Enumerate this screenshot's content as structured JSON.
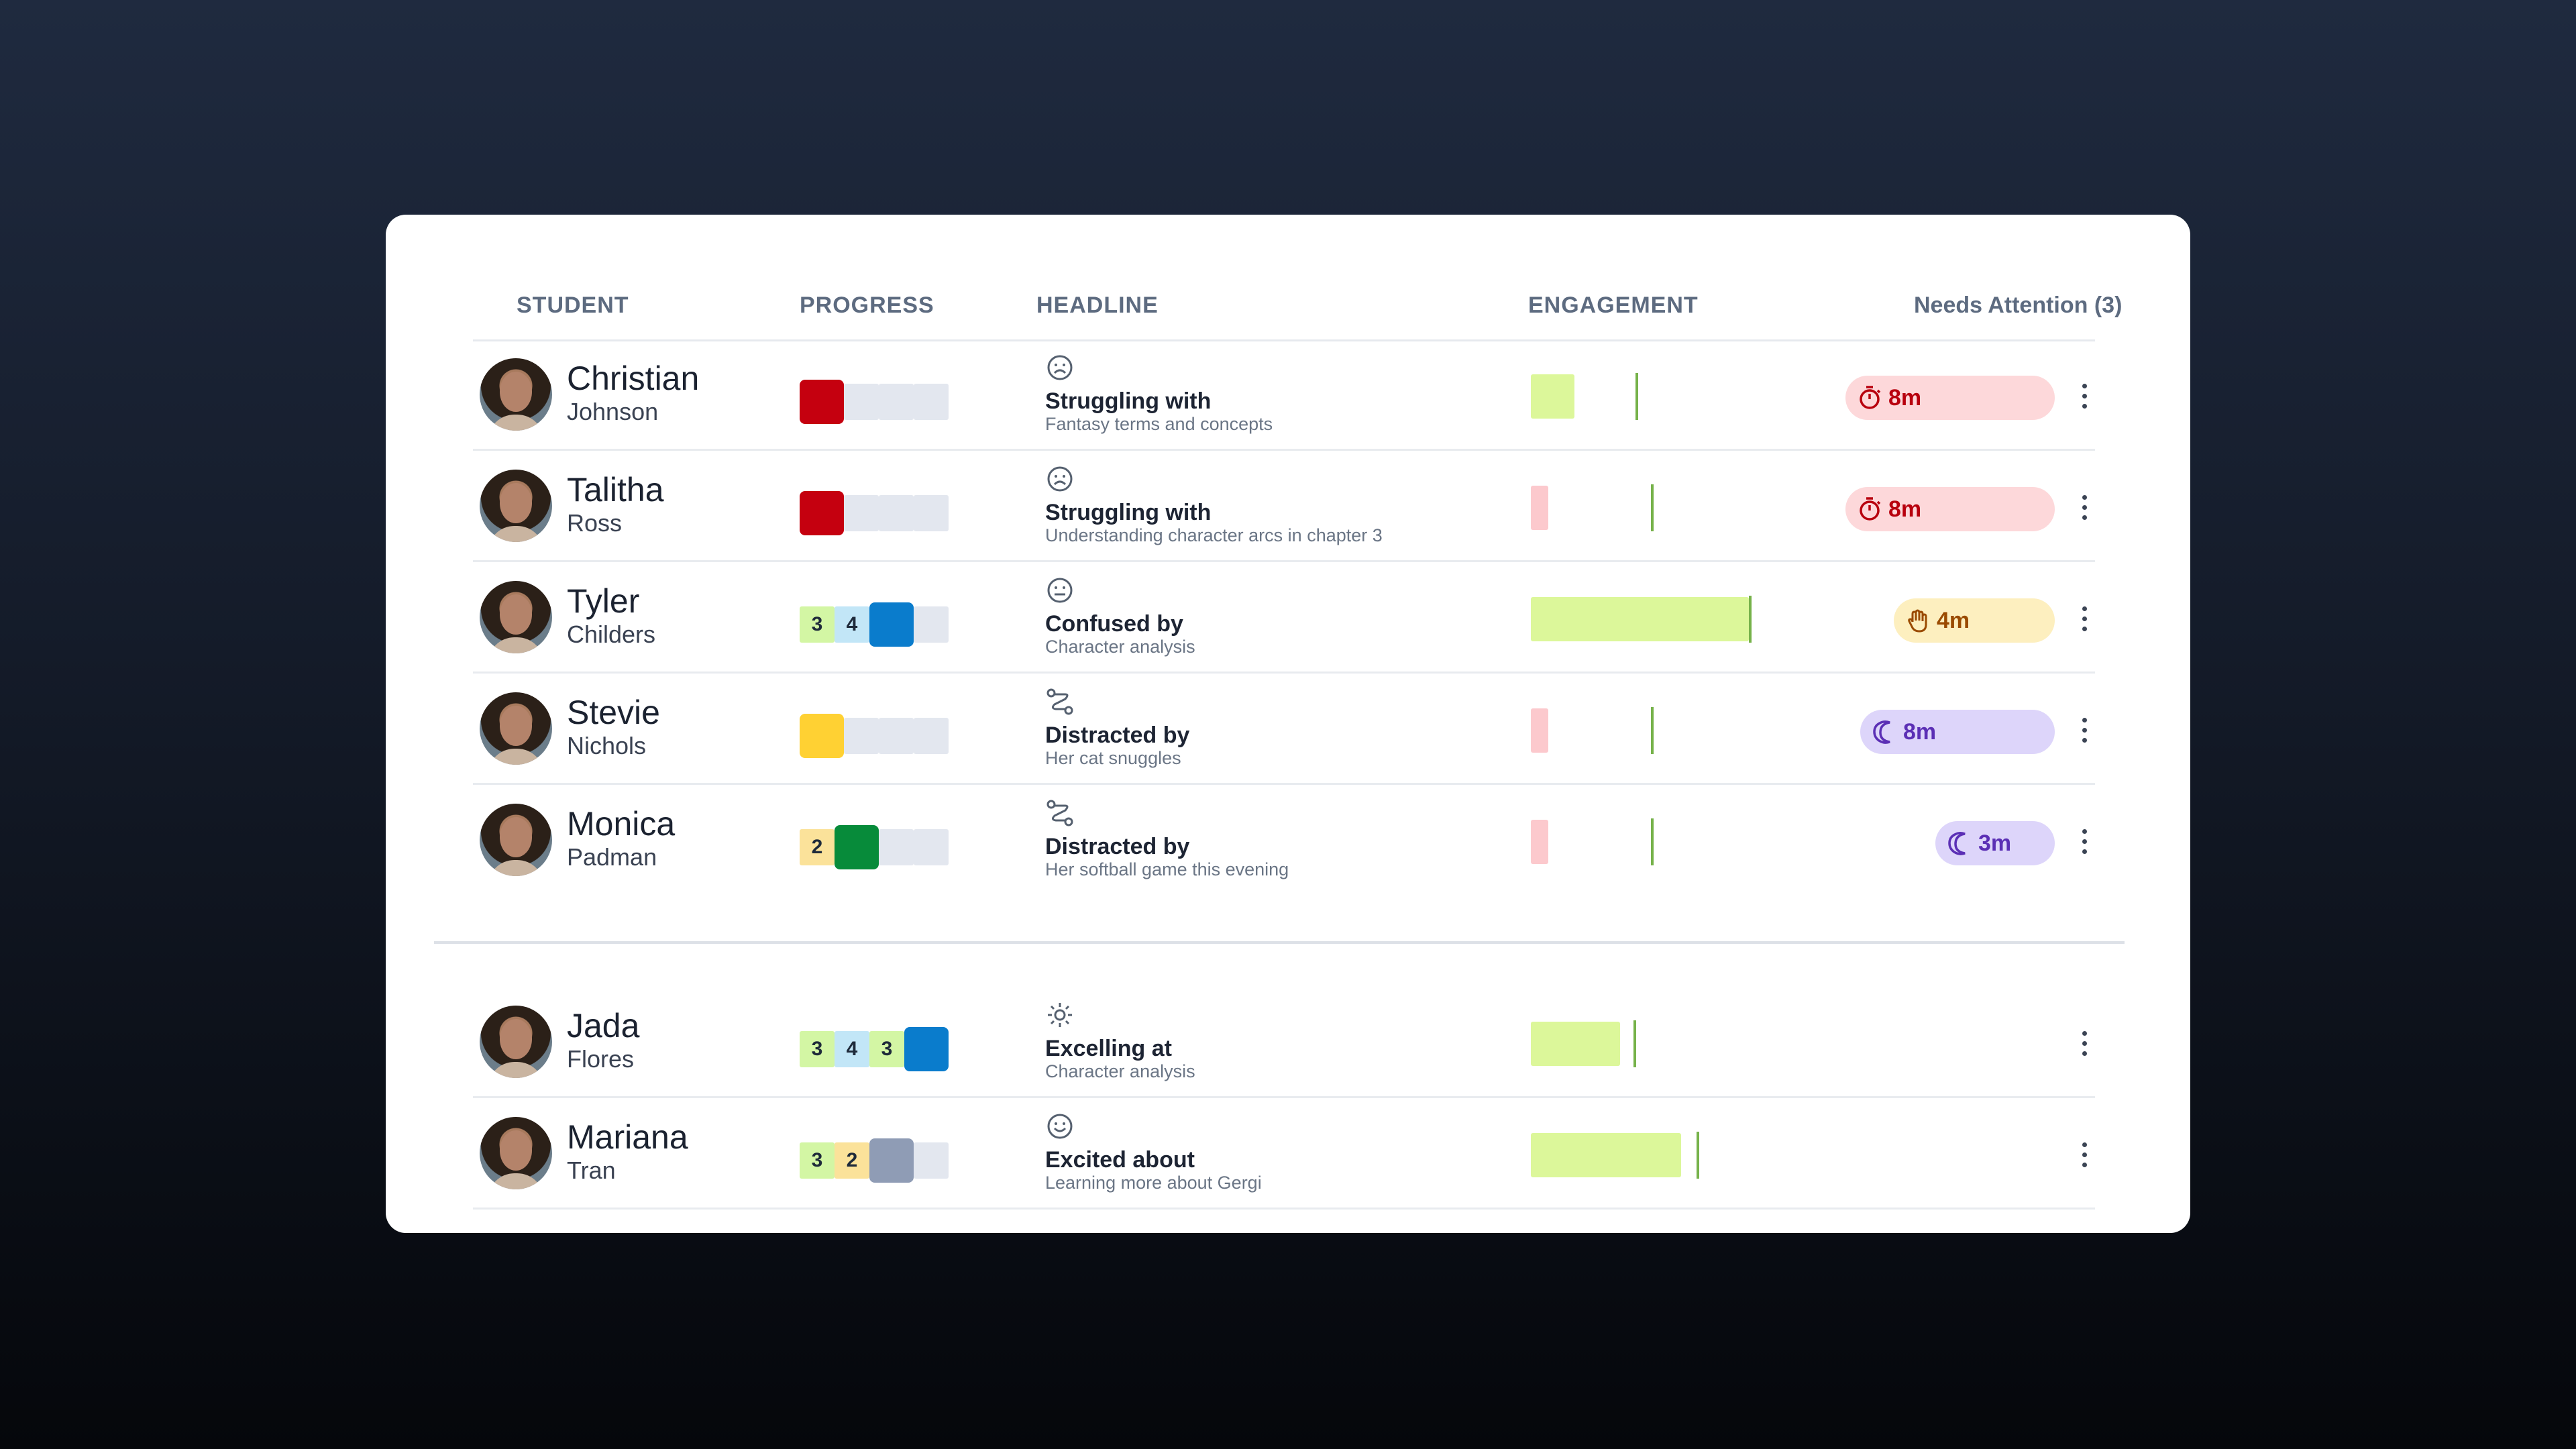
{
  "columns": {
    "student": "STUDENT",
    "progress": "PROGRESS",
    "headline": "HEADLINE",
    "engagement": "ENGAGEMENT",
    "needs_attention": "Needs Attention (3)"
  },
  "colors": {
    "red": "#c5000f",
    "yellow": "#ffd133",
    "green": "#078b3a",
    "blue": "#0a7ccc",
    "gray_block": "#8f9cb5",
    "empty": "#e3e7ef",
    "lime": "#dcf79a",
    "pink": "#fcc9cd",
    "mint": "#d3f6a4",
    "sky": "#c2e6f7",
    "sand": "#fbe29a"
  },
  "students": [
    {
      "first": "Christian",
      "last": "Johnson",
      "progress_label_cells": [],
      "progress_active": "red",
      "icon": "frown-face-icon",
      "headline_title": "Struggling with",
      "headline_sub": "Fantasy terms and concepts",
      "engagement_level": 0.2,
      "engagement_color": "lime",
      "engagement_marker": 0.48,
      "attention": {
        "label": "8m",
        "icon": "stopwatch-icon",
        "kind": "timer"
      }
    },
    {
      "first": "Talitha",
      "last": "Ross",
      "progress_label_cells": [],
      "progress_active": "red",
      "icon": "frown-face-icon",
      "headline_title": "Struggling with",
      "headline_sub": "Understanding character arcs in chapter 3",
      "engagement_level": 0.08,
      "engagement_color": "pink",
      "engagement_marker": 0.55,
      "attention": {
        "label": "8m",
        "icon": "stopwatch-icon",
        "kind": "timer"
      }
    },
    {
      "first": "Tyler",
      "last": "Childers",
      "progress_label_cells": [
        {
          "v": "3",
          "c": "mint"
        },
        {
          "v": "4",
          "c": "sky"
        }
      ],
      "progress_active": "blue",
      "icon": "neutral-face-icon",
      "headline_title": "Confused by",
      "headline_sub": "Character analysis",
      "engagement_level": 1.0,
      "engagement_color": "lime",
      "engagement_marker": 1.0,
      "attention": {
        "label": "4m",
        "icon": "raised-hand-icon",
        "kind": "hand"
      }
    },
    {
      "first": "Stevie",
      "last": "Nichols",
      "progress_label_cells": [],
      "progress_active": "yellow",
      "icon": "squiggle-path-icon",
      "headline_title": "Distracted by",
      "headline_sub": "Her cat snuggles",
      "engagement_level": 0.08,
      "engagement_color": "pink",
      "engagement_marker": 0.55,
      "attention": {
        "label": "8m",
        "icon": "moon-icon",
        "kind": "moon"
      }
    },
    {
      "first": "Monica",
      "last": "Padman",
      "progress_label_cells": [
        {
          "v": "2",
          "c": "sand"
        }
      ],
      "progress_active": "green",
      "icon": "squiggle-path-icon",
      "headline_title": "Distracted by",
      "headline_sub": "Her softball game this evening",
      "engagement_level": 0.08,
      "engagement_color": "pink",
      "engagement_marker": 0.55,
      "attention": {
        "label": "3m",
        "icon": "moon-icon",
        "kind": "moon"
      }
    },
    {
      "first": "Jada",
      "last": "Flores",
      "progress_label_cells": [
        {
          "v": "3",
          "c": "mint"
        },
        {
          "v": "4",
          "c": "sky"
        },
        {
          "v": "3",
          "c": "mint"
        }
      ],
      "progress_active": "blue",
      "icon": "sparkle-sun-icon",
      "headline_title": "Excelling at",
      "headline_sub": "Character analysis",
      "engagement_level": 0.41,
      "engagement_color": "lime",
      "engagement_marker": 0.47,
      "attention": null
    },
    {
      "first": "Mariana",
      "last": "Tran",
      "progress_label_cells": [
        {
          "v": "3",
          "c": "mint"
        },
        {
          "v": "2",
          "c": "sand"
        }
      ],
      "progress_active": "gray_block",
      "icon": "smile-face-icon",
      "headline_title": "Excited about",
      "headline_sub": "Learning more about Gergi",
      "engagement_level": 0.69,
      "engagement_color": "lime",
      "engagement_marker": 0.76,
      "attention": null
    }
  ]
}
